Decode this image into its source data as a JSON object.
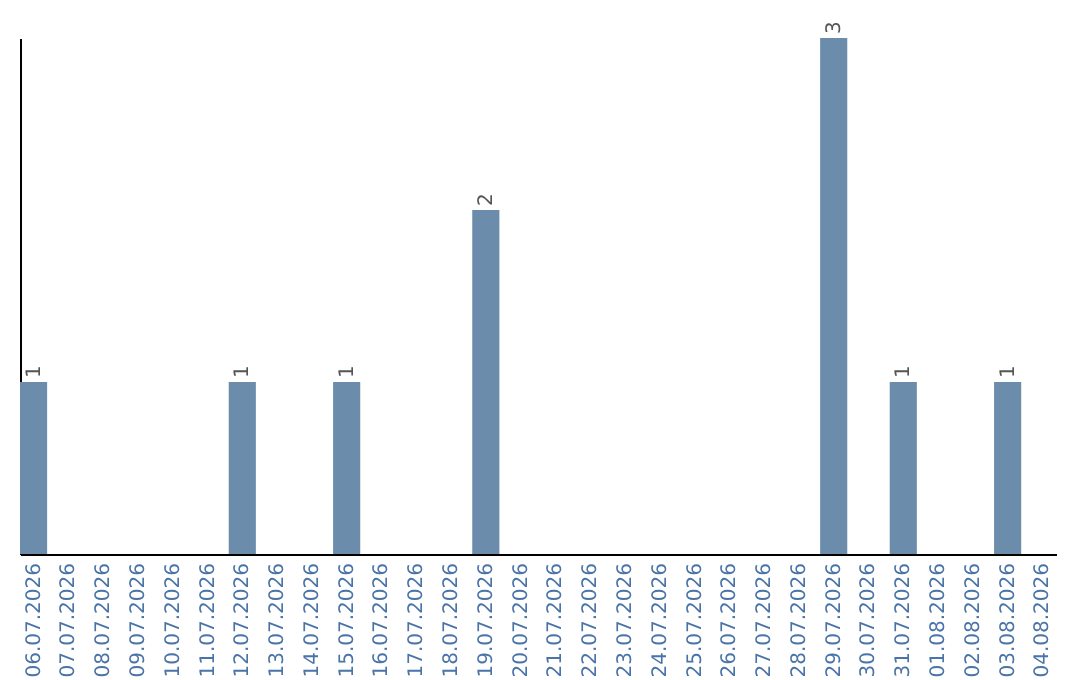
{
  "chart_data": {
    "type": "bar",
    "categories": [
      "06.07.2026",
      "07.07.2026",
      "08.07.2026",
      "09.07.2026",
      "10.07.2026",
      "11.07.2026",
      "12.07.2026",
      "13.07.2026",
      "14.07.2026",
      "15.07.2026",
      "16.07.2026",
      "17.07.2026",
      "18.07.2026",
      "19.07.2026",
      "20.07.2026",
      "21.07.2026",
      "22.07.2026",
      "23.07.2026",
      "24.07.2026",
      "25.07.2026",
      "26.07.2026",
      "27.07.2026",
      "28.07.2026",
      "29.07.2026",
      "30.07.2026",
      "31.07.2026",
      "01.08.2026",
      "02.08.2026",
      "03.08.2026",
      "04.08.2026"
    ],
    "values": [
      1,
      0,
      0,
      0,
      0,
      0,
      1,
      0,
      0,
      1,
      0,
      0,
      0,
      2,
      0,
      0,
      0,
      0,
      0,
      0,
      0,
      0,
      0,
      3,
      0,
      1,
      0,
      0,
      1,
      0
    ],
    "value_labels": [
      "1",
      null,
      null,
      null,
      null,
      null,
      "1",
      null,
      null,
      "1",
      null,
      null,
      null,
      "2",
      null,
      null,
      null,
      null,
      null,
      null,
      null,
      null,
      null,
      "3",
      null,
      "1",
      null,
      null,
      "1",
      null
    ],
    "color": "#6b8cab",
    "ylim": [
      0,
      3
    ],
    "tick_labels": "x",
    "grid": false
  }
}
